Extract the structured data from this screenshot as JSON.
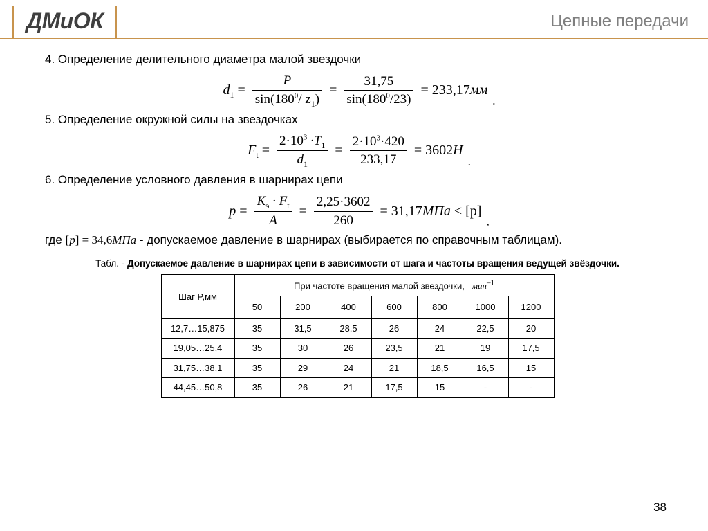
{
  "header": {
    "logo": "ДМиОК",
    "title": "Цепные передачи"
  },
  "sections": {
    "s4": "4. Определение делительного диаметра малой звездочки",
    "s5": "5. Определение окружной силы на звездочках",
    "s6": "6. Определение условного давления в шарнирах цепи",
    "note_gde": "где",
    "note_tail": " - допускаемое давление в шарнирах (выбирается по справочным таблицам)."
  },
  "formulas": {
    "f4": {
      "lhs": "d",
      "lhs_sub": "1",
      "eq": "=",
      "n1": "P",
      "d1a": "sin(180",
      "d1sup": "0",
      "d1b": "/ z",
      "d1sub": "1",
      "d1c": ")",
      "n2": "31,75",
      "d2a": "sin(180",
      "d2sup": "0",
      "d2b": "/23)",
      "res": "= 233,17",
      "unit": "мм",
      "punct": "."
    },
    "f5": {
      "lhs": "F",
      "lhs_sub": "t",
      "n1": "2·10",
      "n1sup": "3",
      "n1b": " ·T",
      "n1sub": "1",
      "d1": "d",
      "d1sub": "1",
      "n2": "2·10",
      "n2sup": "3",
      "n2b": "·420",
      "d2": "233,17",
      "res": "= 3602",
      "unit": "H",
      "punct": "."
    },
    "f6": {
      "lhs": "p",
      "n1": "K",
      "n1sub": "э",
      "n1b": " · F",
      "n1sub2": "t",
      "d1": "A",
      "n2": "2,25·3602",
      "d2": "260",
      "res": "= 31,17",
      "unit": "МПа",
      "tail": "< [p]",
      "punct": ","
    },
    "allow": {
      "lbr": "[",
      "sym": "p",
      "rbr": "] = 34,6",
      "unit": "МПа"
    }
  },
  "tableCaption": {
    "pre": "Табл. - ",
    "bold": "Допускаемое давление в шарнирах цепи в зависимости от шага и частоты вращения ведущей звёздочки."
  },
  "table": {
    "col0": "Шаг P,мм",
    "headerLine": "При частоте вращения малой звездочки,",
    "headerUnit": "мин",
    "headerUnitSup": "–1",
    "speeds": [
      "50",
      "200",
      "400",
      "600",
      "800",
      "1000",
      "1200"
    ],
    "rows": [
      {
        "p": "12,7…15,875",
        "v": [
          "35",
          "31,5",
          "28,5",
          "26",
          "24",
          "22,5",
          "20"
        ]
      },
      {
        "p": "19,05…25,4",
        "v": [
          "35",
          "30",
          "26",
          "23,5",
          "21",
          "19",
          "17,5"
        ]
      },
      {
        "p": "31,75…38,1",
        "v": [
          "35",
          "29",
          "24",
          "21",
          "18,5",
          "16,5",
          "15"
        ]
      },
      {
        "p": "44,45…50,8",
        "v": [
          "35",
          "26",
          "21",
          "17,5",
          "15",
          "-",
          "-"
        ]
      }
    ],
    "colWidths": {
      "first": 105,
      "rest": 65
    }
  },
  "pageNumber": "38",
  "colors": {
    "accent": "#c8944d",
    "muted": "#7f7f7f",
    "logo": "#3f3f3f",
    "border": "#000000",
    "bg": "#ffffff"
  }
}
